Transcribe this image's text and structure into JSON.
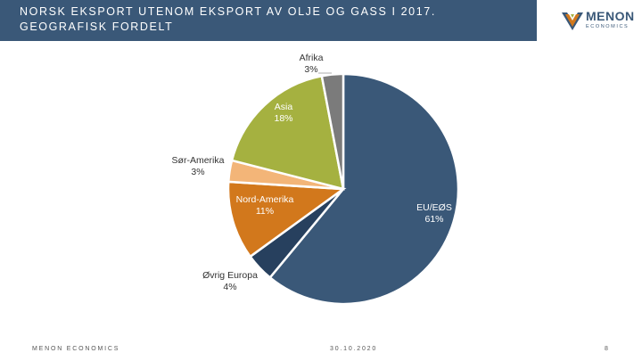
{
  "header": {
    "title": "NORSK EKSPORT UTENOM EKSPORT AV OLJE OG GASS I 2017. GEOGRAFISK FORDELT"
  },
  "logo": {
    "word": "MENON",
    "sub": "ECONOMICS"
  },
  "chart_data": {
    "type": "pie",
    "slices": [
      {
        "name": "EU/EØS",
        "value": 61,
        "label": "61%",
        "color": "#3a5878"
      },
      {
        "name": "Øvrig Europa",
        "value": 4,
        "label": "4%",
        "color": "#27405e"
      },
      {
        "name": "Nord-Amerika",
        "value": 11,
        "label": "11%",
        "color": "#d2781c"
      },
      {
        "name": "Sør-Amerika",
        "value": 3,
        "label": "3%",
        "color": "#f3b578"
      },
      {
        "name": "Asia",
        "value": 18,
        "label": "18%",
        "color": "#a5b140"
      },
      {
        "name": "Afrika",
        "value": 3,
        "label": "3%",
        "color": "#7b7b7b"
      }
    ],
    "start": "12 o'clock",
    "direction": "clockwise"
  },
  "footer": {
    "left": "MENON ECONOMICS",
    "date": "30.10.2020",
    "page": "8"
  }
}
